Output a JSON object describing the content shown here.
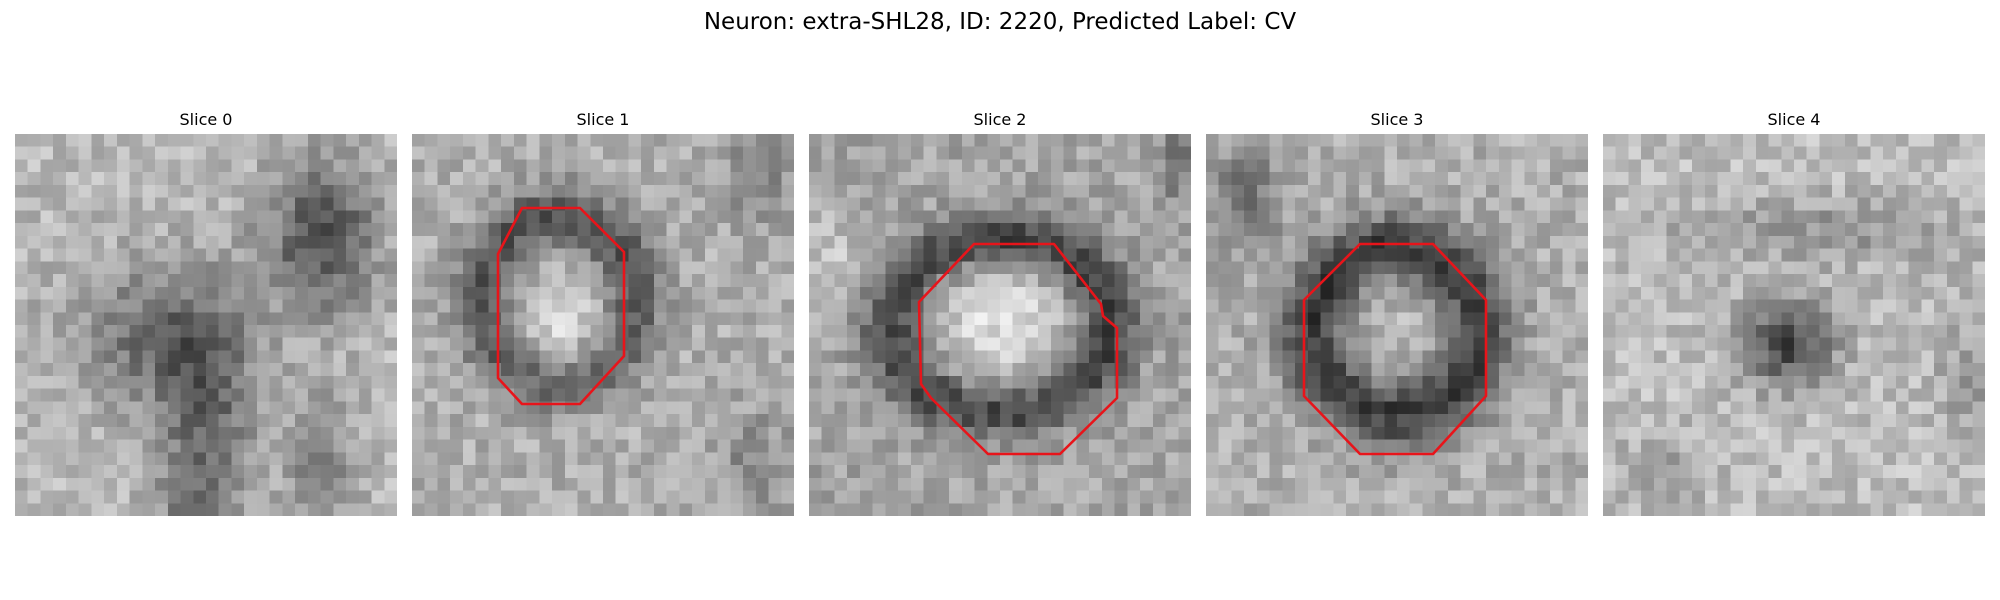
{
  "figure": {
    "title": "Neuron: extra-SHL28, ID: 2220, Predicted Label: CV"
  },
  "colors": {
    "contour": "#e8141a",
    "background": "#ffffff"
  },
  "panels": [
    {
      "title": "Slice 0",
      "has_contour": false
    },
    {
      "title": "Slice 1",
      "has_contour": true
    },
    {
      "title": "Slice 2",
      "has_contour": true
    },
    {
      "title": "Slice 3",
      "has_contour": true
    },
    {
      "title": "Slice 4",
      "has_contour": false
    }
  ]
}
